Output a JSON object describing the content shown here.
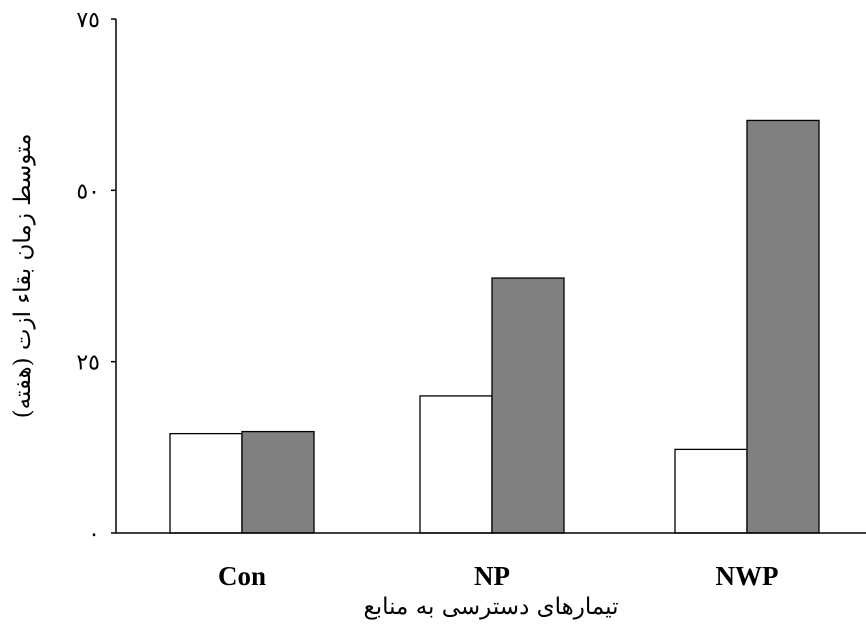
{
  "chart_data": {
    "type": "bar",
    "title": "",
    "xlabel": "تیمارهای دسترسی به منابع",
    "ylabel": "متوسط زمان بقاء ازت (هفته)",
    "categories": [
      "Con",
      "NP",
      "NWP"
    ],
    "ylim": [
      0,
      75
    ],
    "yticks": [
      0,
      25,
      50,
      75
    ],
    "ytick_labels": [
      "٠",
      "٢٥",
      "٥٠",
      "٧٥"
    ],
    "grid": false,
    "legend": "none",
    "series": [
      {
        "values": [
          14.5,
          20,
          12.2
        ],
        "color": "#ffffff"
      },
      {
        "values": [
          14.8,
          37.2,
          60.2
        ],
        "color": "#808080"
      }
    ]
  }
}
